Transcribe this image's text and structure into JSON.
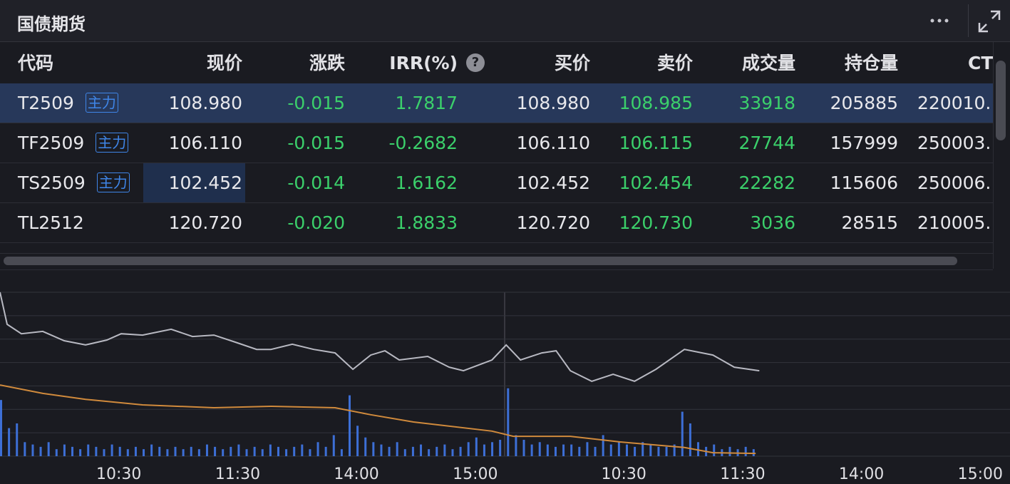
{
  "header": {
    "title": "国债期货"
  },
  "table": {
    "columns": [
      "代码",
      "现价",
      "涨跌",
      "IRR(%)",
      "买价",
      "卖价",
      "成交量",
      "持仓量",
      "CT"
    ],
    "help_icon": "?",
    "rows": [
      {
        "code": "T2509",
        "badge": "主力",
        "cells": [
          "108.980",
          "-0.015",
          "1.7817",
          "108.980",
          "108.985",
          "33918",
          "205885",
          "220010."
        ]
      },
      {
        "code": "TF2509",
        "badge": "主力",
        "cells": [
          "106.110",
          "-0.015",
          "-0.2682",
          "106.110",
          "106.115",
          "27744",
          "157999",
          "250003."
        ]
      },
      {
        "code": "TS2509",
        "badge": "主力",
        "cells": [
          "102.452",
          "-0.014",
          "1.6162",
          "102.452",
          "102.454",
          "22282",
          "115606",
          "250006."
        ]
      },
      {
        "code": "TL2512",
        "cells": [
          "120.720",
          "-0.020",
          "1.8833",
          "120.720",
          "120.730",
          "3036",
          "28515",
          "210005."
        ]
      }
    ]
  },
  "chart_data": {
    "type": "line",
    "xlim": [
      0,
      510
    ],
    "ylim": [
      0,
      7
    ],
    "yticks": [
      0,
      1,
      2,
      3,
      4,
      5,
      6,
      7
    ],
    "grid": true,
    "xticks": [
      {
        "value": 60,
        "label": "10:30"
      },
      {
        "value": 120,
        "label": "11:30"
      },
      {
        "value": 180,
        "label": "14:00"
      },
      {
        "value": 240,
        "label": "15:00"
      },
      {
        "value": 315,
        "label": "10:30"
      },
      {
        "value": 375,
        "label": "11:30"
      },
      {
        "value": 435,
        "label": "14:00"
      },
      {
        "value": 495,
        "label": "15:00"
      }
    ],
    "series": [
      {
        "type": "bar",
        "color": "#3d6fd6",
        "x": [
          0,
          4,
          8,
          12,
          16,
          20,
          24,
          28,
          32,
          36,
          40,
          44,
          48,
          52,
          56,
          60,
          64,
          68,
          72,
          76,
          80,
          84,
          88,
          92,
          96,
          100,
          104,
          108,
          112,
          116,
          120,
          124,
          128,
          132,
          136,
          140,
          144,
          148,
          152,
          156,
          160,
          164,
          168,
          172,
          176,
          180,
          184,
          188,
          192,
          196,
          200,
          204,
          208,
          212,
          216,
          220,
          224,
          228,
          232,
          236,
          240,
          244,
          248,
          252,
          256,
          260,
          264,
          268,
          272,
          276,
          280,
          284,
          288,
          292,
          296,
          300,
          304,
          308,
          312,
          316,
          320,
          324,
          328,
          332,
          336,
          340,
          344,
          348,
          352,
          356,
          360,
          364,
          368,
          372,
          376,
          380
        ],
        "values": [
          2.4,
          1.2,
          1.4,
          0.6,
          0.5,
          0.4,
          0.6,
          0.3,
          0.5,
          0.4,
          0.3,
          0.5,
          0.4,
          0.3,
          0.5,
          0.4,
          0.3,
          0.4,
          0.3,
          0.5,
          0.4,
          0.3,
          0.4,
          0.3,
          0.4,
          0.3,
          0.5,
          0.4,
          0.3,
          0.4,
          0.5,
          0.3,
          0.4,
          0.3,
          0.5,
          0.4,
          0.3,
          0.4,
          0.5,
          0.3,
          0.6,
          0.4,
          0.9,
          0.3,
          2.6,
          1.3,
          0.8,
          0.6,
          0.5,
          0.4,
          0.6,
          0.3,
          0.4,
          0.5,
          0.3,
          0.4,
          0.5,
          0.3,
          0.4,
          0.6,
          0.8,
          0.5,
          0.6,
          0.7,
          2.9,
          0.9,
          0.7,
          0.5,
          0.6,
          0.5,
          0.4,
          0.5,
          0.5,
          0.4,
          0.6,
          0.4,
          0.9,
          0.5,
          0.6,
          0.5,
          0.4,
          0.6,
          0.5,
          0.4,
          0.4,
          0.5,
          1.9,
          1.4,
          0.6,
          0.4,
          0.5,
          0.3,
          0.4,
          0.3,
          0.4,
          0.3
        ]
      },
      {
        "type": "line",
        "color": "#d08a3c",
        "x": [
          0,
          21.6,
          43.2,
          72,
          108,
          136.8,
          169.2,
          187.2,
          208.8,
          248.4,
          259.2,
          288,
          313.2,
          345.6,
          360,
          381.6
        ],
        "values": [
          3.04,
          2.68,
          2.43,
          2.19,
          2.07,
          2.13,
          2.07,
          1.77,
          1.46,
          1.07,
          0.85,
          0.85,
          0.61,
          0.37,
          0.15,
          0.12
        ]
      },
      {
        "type": "line",
        "color": "#b8b9c2",
        "x": [
          0,
          3.6,
          10.8,
          21.6,
          32.4,
          43.2,
          54,
          61.2,
          72,
          86.4,
          97.2,
          108,
          118.8,
          129.6,
          136.8,
          147.6,
          158.4,
          169.2,
          178.2,
          187.2,
          194.4,
          201.6,
          216,
          226.8,
          234,
          248.4,
          255.6,
          262.8,
          273.6,
          280.8,
          288,
          298.8,
          309.6,
          320.4,
          331.2,
          345.6,
          360,
          370.8,
          383.4
        ],
        "values": [
          7.0,
          5.63,
          5.23,
          5.33,
          4.93,
          4.75,
          4.96,
          5.23,
          5.17,
          5.42,
          5.11,
          5.17,
          4.87,
          4.56,
          4.56,
          4.78,
          4.56,
          4.41,
          3.71,
          4.32,
          4.5,
          4.11,
          4.26,
          3.8,
          3.65,
          4.11,
          4.75,
          4.11,
          4.41,
          4.5,
          3.65,
          3.2,
          3.5,
          3.2,
          3.71,
          4.56,
          4.32,
          3.8,
          3.65
        ]
      }
    ]
  }
}
